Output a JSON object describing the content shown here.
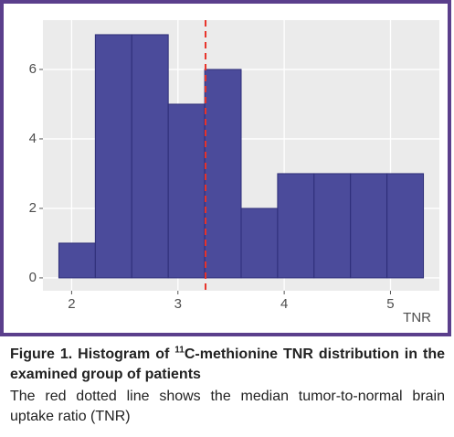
{
  "chart_data": {
    "type": "histogram",
    "xlabel": "TNR",
    "bins": [
      1.88,
      2.223,
      2.566,
      2.909,
      3.252,
      3.595,
      3.938,
      4.281,
      4.624,
      4.967,
      5.31
    ],
    "counts": [
      1,
      7,
      7,
      5,
      6,
      2,
      3,
      3,
      3,
      3
    ],
    "color": "#4b4b9b",
    "edge_color": "#2e2e78",
    "xlim": [
      1.73,
      5.46
    ],
    "xticks": [
      2,
      3,
      4,
      5
    ],
    "ylim": [
      -0.37,
      7.42
    ],
    "yticks": [
      0,
      2,
      4,
      6
    ],
    "grid": true,
    "median_line": {
      "value": 3.26,
      "color": "#e8332a"
    }
  },
  "caption": {
    "title_start": "Figure 1. Histogram of ",
    "title_sup": "11",
    "title_end": "C-methionine TNR distribution in the examined group of patients",
    "text": "The red dotted line shows the median tumor-to-normal brain uptake ratio (TNR)"
  }
}
